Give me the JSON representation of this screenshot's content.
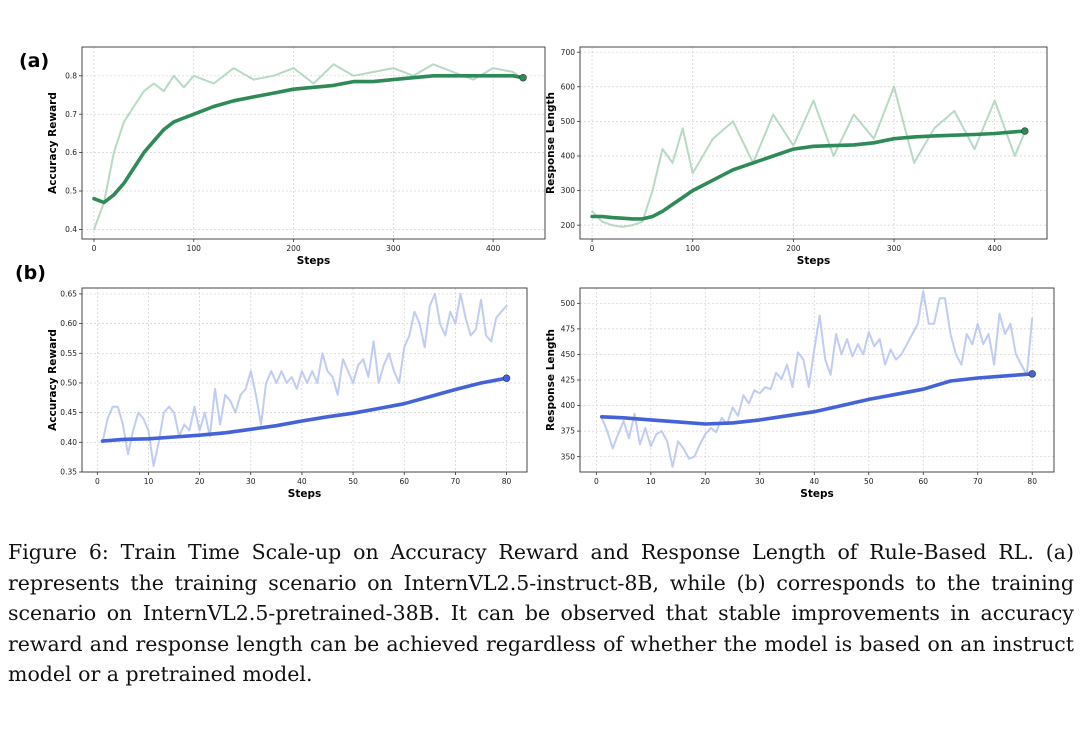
{
  "panel_labels": {
    "a": "(a)",
    "b": "(b)"
  },
  "caption": "Figure 6: Train Time Scale-up on Accuracy Reward and Response Length of Rule-Based RL. (a) represents the training scenario on InternVL2.5-instruct-8B, while (b) corresponds to the training scenario on InternVL2.5-pretrained-38B. It can be observed that stable improvements in accuracy reward and response length can be achieved regardless of whether the model is based on an instruct model or a pretrained model.",
  "colors": {
    "green_dark": "#2e8b57",
    "green_light": "#a9d3b8",
    "blue_dark": "#4563d8",
    "blue_light": "#b5c3f0",
    "grid": "#d0d0d0"
  },
  "chart_data": [
    {
      "id": "a-left",
      "type": "line",
      "xlabel": "Steps",
      "ylabel": "Accuracy Reward",
      "xlim": [
        -12,
        452
      ],
      "ylim": [
        0.375,
        0.875
      ],
      "xticks": [
        0,
        100,
        200,
        300,
        400
      ],
      "yticks": [
        0.4,
        0.5,
        0.6,
        0.7,
        0.8
      ],
      "ytick_labels": [
        "0.4",
        "0.5",
        "0.6",
        "0.7",
        "0.8"
      ],
      "series": [
        {
          "name": "raw",
          "style": "light",
          "color": "green_light",
          "x": [
            0,
            10,
            20,
            30,
            40,
            50,
            60,
            70,
            80,
            90,
            100,
            120,
            140,
            160,
            180,
            200,
            220,
            240,
            260,
            280,
            300,
            320,
            340,
            360,
            380,
            400,
            420,
            430
          ],
          "values": [
            0.4,
            0.47,
            0.6,
            0.68,
            0.72,
            0.76,
            0.78,
            0.76,
            0.8,
            0.77,
            0.8,
            0.78,
            0.82,
            0.79,
            0.8,
            0.82,
            0.78,
            0.83,
            0.8,
            0.81,
            0.82,
            0.8,
            0.83,
            0.81,
            0.79,
            0.82,
            0.81,
            0.79
          ]
        },
        {
          "name": "smoothed",
          "style": "bold",
          "color": "green_dark",
          "x": [
            0,
            10,
            20,
            30,
            40,
            50,
            60,
            70,
            80,
            90,
            100,
            120,
            140,
            160,
            180,
            200,
            220,
            240,
            260,
            280,
            300,
            320,
            340,
            360,
            380,
            400,
            420,
            430
          ],
          "values": [
            0.48,
            0.47,
            0.49,
            0.52,
            0.56,
            0.6,
            0.63,
            0.66,
            0.68,
            0.69,
            0.7,
            0.72,
            0.735,
            0.745,
            0.755,
            0.765,
            0.77,
            0.775,
            0.785,
            0.785,
            0.79,
            0.795,
            0.8,
            0.8,
            0.8,
            0.8,
            0.8,
            0.795
          ]
        }
      ]
    },
    {
      "id": "a-right",
      "type": "line",
      "xlabel": "Steps",
      "ylabel": "Response Length",
      "xlim": [
        -12,
        452
      ],
      "ylim": [
        160,
        715
      ],
      "xticks": [
        0,
        100,
        200,
        300,
        400
      ],
      "yticks": [
        200,
        300,
        400,
        500,
        600,
        700
      ],
      "ytick_labels": [
        "200",
        "300",
        "400",
        "500",
        "600",
        "700"
      ],
      "series": [
        {
          "name": "raw",
          "style": "light",
          "color": "green_light",
          "x": [
            0,
            10,
            20,
            30,
            40,
            50,
            60,
            70,
            80,
            90,
            100,
            120,
            140,
            160,
            180,
            200,
            220,
            240,
            260,
            280,
            300,
            320,
            340,
            360,
            380,
            400,
            420,
            430
          ],
          "values": [
            240,
            210,
            200,
            195,
            200,
            210,
            300,
            420,
            380,
            480,
            350,
            450,
            500,
            380,
            520,
            430,
            560,
            400,
            520,
            450,
            600,
            380,
            480,
            530,
            420,
            560,
            400,
            470
          ]
        },
        {
          "name": "smoothed",
          "style": "bold",
          "color": "green_dark",
          "x": [
            0,
            10,
            20,
            30,
            40,
            50,
            60,
            70,
            80,
            90,
            100,
            120,
            140,
            160,
            180,
            200,
            220,
            240,
            260,
            280,
            300,
            320,
            340,
            360,
            380,
            400,
            420,
            430
          ],
          "values": [
            225,
            225,
            222,
            220,
            218,
            218,
            225,
            240,
            260,
            280,
            300,
            330,
            360,
            380,
            400,
            420,
            428,
            430,
            432,
            438,
            450,
            455,
            458,
            460,
            462,
            465,
            470,
            472
          ]
        }
      ]
    },
    {
      "id": "b-left",
      "type": "line",
      "xlabel": "Steps",
      "ylabel": "Accuracy Reward",
      "xlim": [
        -3,
        84
      ],
      "ylim": [
        0.35,
        0.66
      ],
      "xticks": [
        0,
        10,
        20,
        30,
        40,
        50,
        60,
        70,
        80
      ],
      "yticks": [
        0.35,
        0.4,
        0.45,
        0.5,
        0.55,
        0.6,
        0.65
      ],
      "ytick_labels": [
        "0.35",
        "0.40",
        "0.45",
        "0.50",
        "0.55",
        "0.60",
        "0.65"
      ],
      "series": [
        {
          "name": "raw",
          "style": "light",
          "color": "blue_light",
          "x": [
            1,
            2,
            3,
            4,
            5,
            6,
            7,
            8,
            9,
            10,
            11,
            12,
            13,
            14,
            15,
            16,
            17,
            18,
            19,
            20,
            21,
            22,
            23,
            24,
            25,
            26,
            27,
            28,
            29,
            30,
            31,
            32,
            33,
            34,
            35,
            36,
            37,
            38,
            39,
            40,
            41,
            42,
            43,
            44,
            45,
            46,
            47,
            48,
            49,
            50,
            51,
            52,
            53,
            54,
            55,
            56,
            57,
            58,
            59,
            60,
            61,
            62,
            63,
            64,
            65,
            66,
            67,
            68,
            69,
            70,
            71,
            72,
            73,
            74,
            75,
            76,
            77,
            78,
            79,
            80
          ],
          "values": [
            0.4,
            0.44,
            0.46,
            0.46,
            0.43,
            0.38,
            0.42,
            0.45,
            0.44,
            0.42,
            0.36,
            0.4,
            0.45,
            0.46,
            0.45,
            0.41,
            0.43,
            0.42,
            0.46,
            0.42,
            0.45,
            0.41,
            0.49,
            0.43,
            0.48,
            0.47,
            0.45,
            0.48,
            0.49,
            0.52,
            0.48,
            0.43,
            0.5,
            0.52,
            0.5,
            0.52,
            0.5,
            0.51,
            0.49,
            0.52,
            0.5,
            0.52,
            0.5,
            0.55,
            0.52,
            0.51,
            0.48,
            0.54,
            0.52,
            0.5,
            0.53,
            0.54,
            0.51,
            0.57,
            0.5,
            0.53,
            0.55,
            0.52,
            0.5,
            0.56,
            0.58,
            0.62,
            0.6,
            0.56,
            0.63,
            0.65,
            0.6,
            0.58,
            0.62,
            0.6,
            0.65,
            0.61,
            0.58,
            0.59,
            0.64,
            0.58,
            0.57,
            0.61,
            0.62,
            0.63
          ]
        },
        {
          "name": "smoothed",
          "style": "bold",
          "color": "blue_dark",
          "x": [
            1,
            5,
            10,
            15,
            20,
            25,
            30,
            35,
            40,
            45,
            50,
            55,
            60,
            65,
            70,
            75,
            80
          ],
          "values": [
            0.402,
            0.405,
            0.406,
            0.409,
            0.412,
            0.416,
            0.422,
            0.428,
            0.436,
            0.443,
            0.449,
            0.457,
            0.465,
            0.477,
            0.489,
            0.5,
            0.508
          ]
        }
      ]
    },
    {
      "id": "b-right",
      "type": "line",
      "xlabel": "Steps",
      "ylabel": "Response Length",
      "xlim": [
        -3,
        84
      ],
      "ylim": [
        335,
        515
      ],
      "xticks": [
        0,
        10,
        20,
        30,
        40,
        50,
        60,
        70,
        80
      ],
      "yticks": [
        350,
        375,
        400,
        425,
        450,
        475,
        500
      ],
      "ytick_labels": [
        "350",
        "375",
        "400",
        "425",
        "450",
        "475",
        "500"
      ],
      "series": [
        {
          "name": "raw",
          "style": "light",
          "color": "blue_light",
          "x": [
            1,
            2,
            3,
            4,
            5,
            6,
            7,
            8,
            9,
            10,
            11,
            12,
            13,
            14,
            15,
            16,
            17,
            18,
            19,
            20,
            21,
            22,
            23,
            24,
            25,
            26,
            27,
            28,
            29,
            30,
            31,
            32,
            33,
            34,
            35,
            36,
            37,
            38,
            39,
            40,
            41,
            42,
            43,
            44,
            45,
            46,
            47,
            48,
            49,
            50,
            51,
            52,
            53,
            54,
            55,
            56,
            57,
            58,
            59,
            60,
            61,
            62,
            63,
            64,
            65,
            66,
            67,
            68,
            69,
            70,
            71,
            72,
            73,
            74,
            75,
            76,
            77,
            78,
            79,
            80
          ],
          "values": [
            388,
            375,
            358,
            372,
            385,
            368,
            392,
            362,
            378,
            360,
            372,
            375,
            365,
            340,
            365,
            358,
            348,
            350,
            362,
            372,
            378,
            374,
            388,
            382,
            398,
            390,
            410,
            402,
            415,
            412,
            418,
            416,
            432,
            426,
            440,
            418,
            452,
            445,
            418,
            455,
            488,
            445,
            430,
            470,
            450,
            465,
            448,
            460,
            450,
            472,
            458,
            465,
            440,
            455,
            445,
            450,
            460,
            470,
            480,
            512,
            480,
            480,
            505,
            505,
            470,
            450,
            440,
            470,
            460,
            480,
            460,
            470,
            440,
            490,
            470,
            480,
            450,
            440,
            430,
            485
          ]
        },
        {
          "name": "smoothed",
          "style": "bold",
          "color": "blue_dark",
          "x": [
            1,
            5,
            10,
            15,
            20,
            25,
            30,
            35,
            40,
            45,
            50,
            55,
            60,
            65,
            70,
            75,
            80
          ],
          "values": [
            389,
            388,
            386,
            384,
            382,
            383,
            386,
            390,
            394,
            400,
            406,
            411,
            416,
            424,
            427,
            429,
            431
          ]
        }
      ]
    }
  ]
}
